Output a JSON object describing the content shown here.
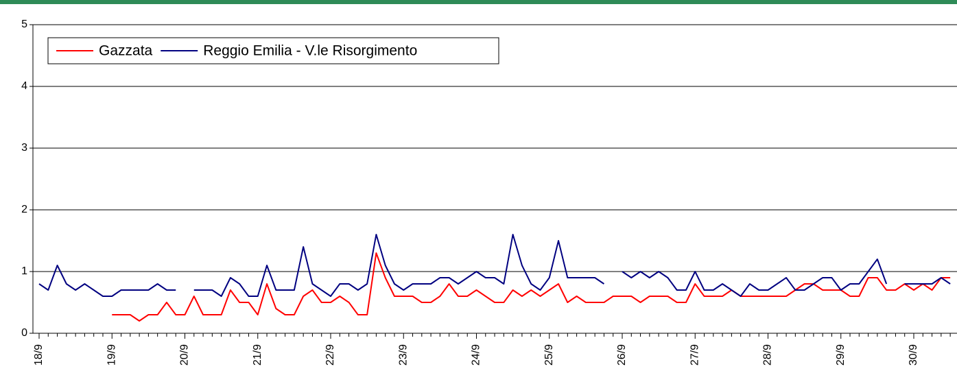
{
  "chart_data": {
    "type": "line",
    "categories": [
      "18/9",
      null,
      null,
      null,
      null,
      null,
      null,
      null,
      "19/9",
      null,
      null,
      null,
      null,
      null,
      null,
      null,
      "20/9",
      null,
      null,
      null,
      null,
      null,
      null,
      null,
      "21/9",
      null,
      null,
      null,
      null,
      null,
      null,
      null,
      "22/9",
      null,
      null,
      null,
      null,
      null,
      null,
      null,
      "23/9",
      null,
      null,
      null,
      null,
      null,
      null,
      null,
      "24/9",
      null,
      null,
      null,
      null,
      null,
      null,
      null,
      "25/9",
      null,
      null,
      null,
      null,
      null,
      null,
      null,
      "26/9",
      null,
      null,
      null,
      null,
      null,
      null,
      null,
      "27/9",
      null,
      null,
      null,
      null,
      null,
      null,
      null,
      "28/9",
      null,
      null,
      null,
      null,
      null,
      null,
      null,
      "29/9",
      null,
      null,
      null,
      null,
      null,
      null,
      null,
      "30/9",
      null,
      null,
      null,
      null
    ],
    "series": [
      {
        "name": "Gazzata",
        "color": "#ff0000",
        "values": [
          null,
          null,
          null,
          null,
          null,
          null,
          null,
          null,
          0.3,
          0.3,
          0.3,
          0.2,
          0.3,
          0.3,
          0.5,
          0.3,
          0.3,
          0.6,
          0.3,
          0.3,
          0.3,
          0.7,
          0.5,
          0.5,
          0.3,
          0.8,
          0.4,
          0.3,
          0.3,
          0.6,
          0.7,
          0.5,
          0.5,
          0.6,
          0.5,
          0.3,
          0.3,
          1.3,
          0.9,
          0.6,
          0.6,
          0.6,
          0.5,
          0.5,
          0.6,
          0.8,
          0.6,
          0.6,
          0.7,
          0.6,
          0.5,
          0.5,
          0.7,
          0.6,
          0.7,
          0.6,
          0.7,
          0.8,
          0.5,
          0.6,
          0.5,
          0.5,
          0.5,
          0.6,
          0.6,
          0.6,
          0.5,
          0.6,
          0.6,
          0.6,
          0.5,
          0.5,
          0.8,
          0.6,
          0.6,
          0.6,
          0.7,
          0.6,
          0.6,
          0.6,
          0.6,
          0.6,
          0.6,
          0.7,
          0.8,
          0.8,
          0.7,
          0.7,
          0.7,
          0.6,
          0.6,
          0.9,
          0.9,
          0.7,
          0.7,
          0.8,
          0.7,
          0.8,
          0.7,
          0.9,
          0.9
        ]
      },
      {
        "name": "Reggio Emilia - V.le Risorgimento",
        "color": "#000080",
        "values": [
          0.8,
          0.7,
          1.1,
          0.8,
          0.7,
          0.8,
          0.7,
          0.6,
          0.6,
          0.7,
          0.7,
          0.7,
          0.7,
          0.8,
          0.7,
          0.7,
          null,
          0.7,
          0.7,
          0.7,
          0.6,
          0.9,
          0.8,
          0.6,
          0.6,
          1.1,
          0.7,
          0.7,
          0.7,
          1.4,
          0.8,
          0.7,
          0.6,
          0.8,
          0.8,
          0.7,
          0.8,
          1.6,
          1.1,
          0.8,
          0.7,
          0.8,
          0.8,
          0.8,
          0.9,
          0.9,
          0.8,
          0.9,
          1.0,
          0.9,
          0.9,
          0.8,
          1.6,
          1.1,
          0.8,
          0.7,
          0.9,
          1.5,
          0.9,
          0.9,
          0.9,
          0.9,
          0.8,
          null,
          1.0,
          0.9,
          1.0,
          0.9,
          1.0,
          0.9,
          0.7,
          0.7,
          1.0,
          0.7,
          0.7,
          0.8,
          0.7,
          0.6,
          0.8,
          0.7,
          0.7,
          0.8,
          0.9,
          0.7,
          0.7,
          0.8,
          0.9,
          0.9,
          0.7,
          0.8,
          0.8,
          1.0,
          1.2,
          0.8,
          null,
          0.8,
          0.8,
          0.8,
          0.8,
          0.9,
          0.8
        ]
      }
    ],
    "ylim": [
      0,
      5
    ],
    "yticks": [
      0,
      1,
      2,
      3,
      4,
      5
    ],
    "grid": true,
    "legend": "top-left"
  }
}
